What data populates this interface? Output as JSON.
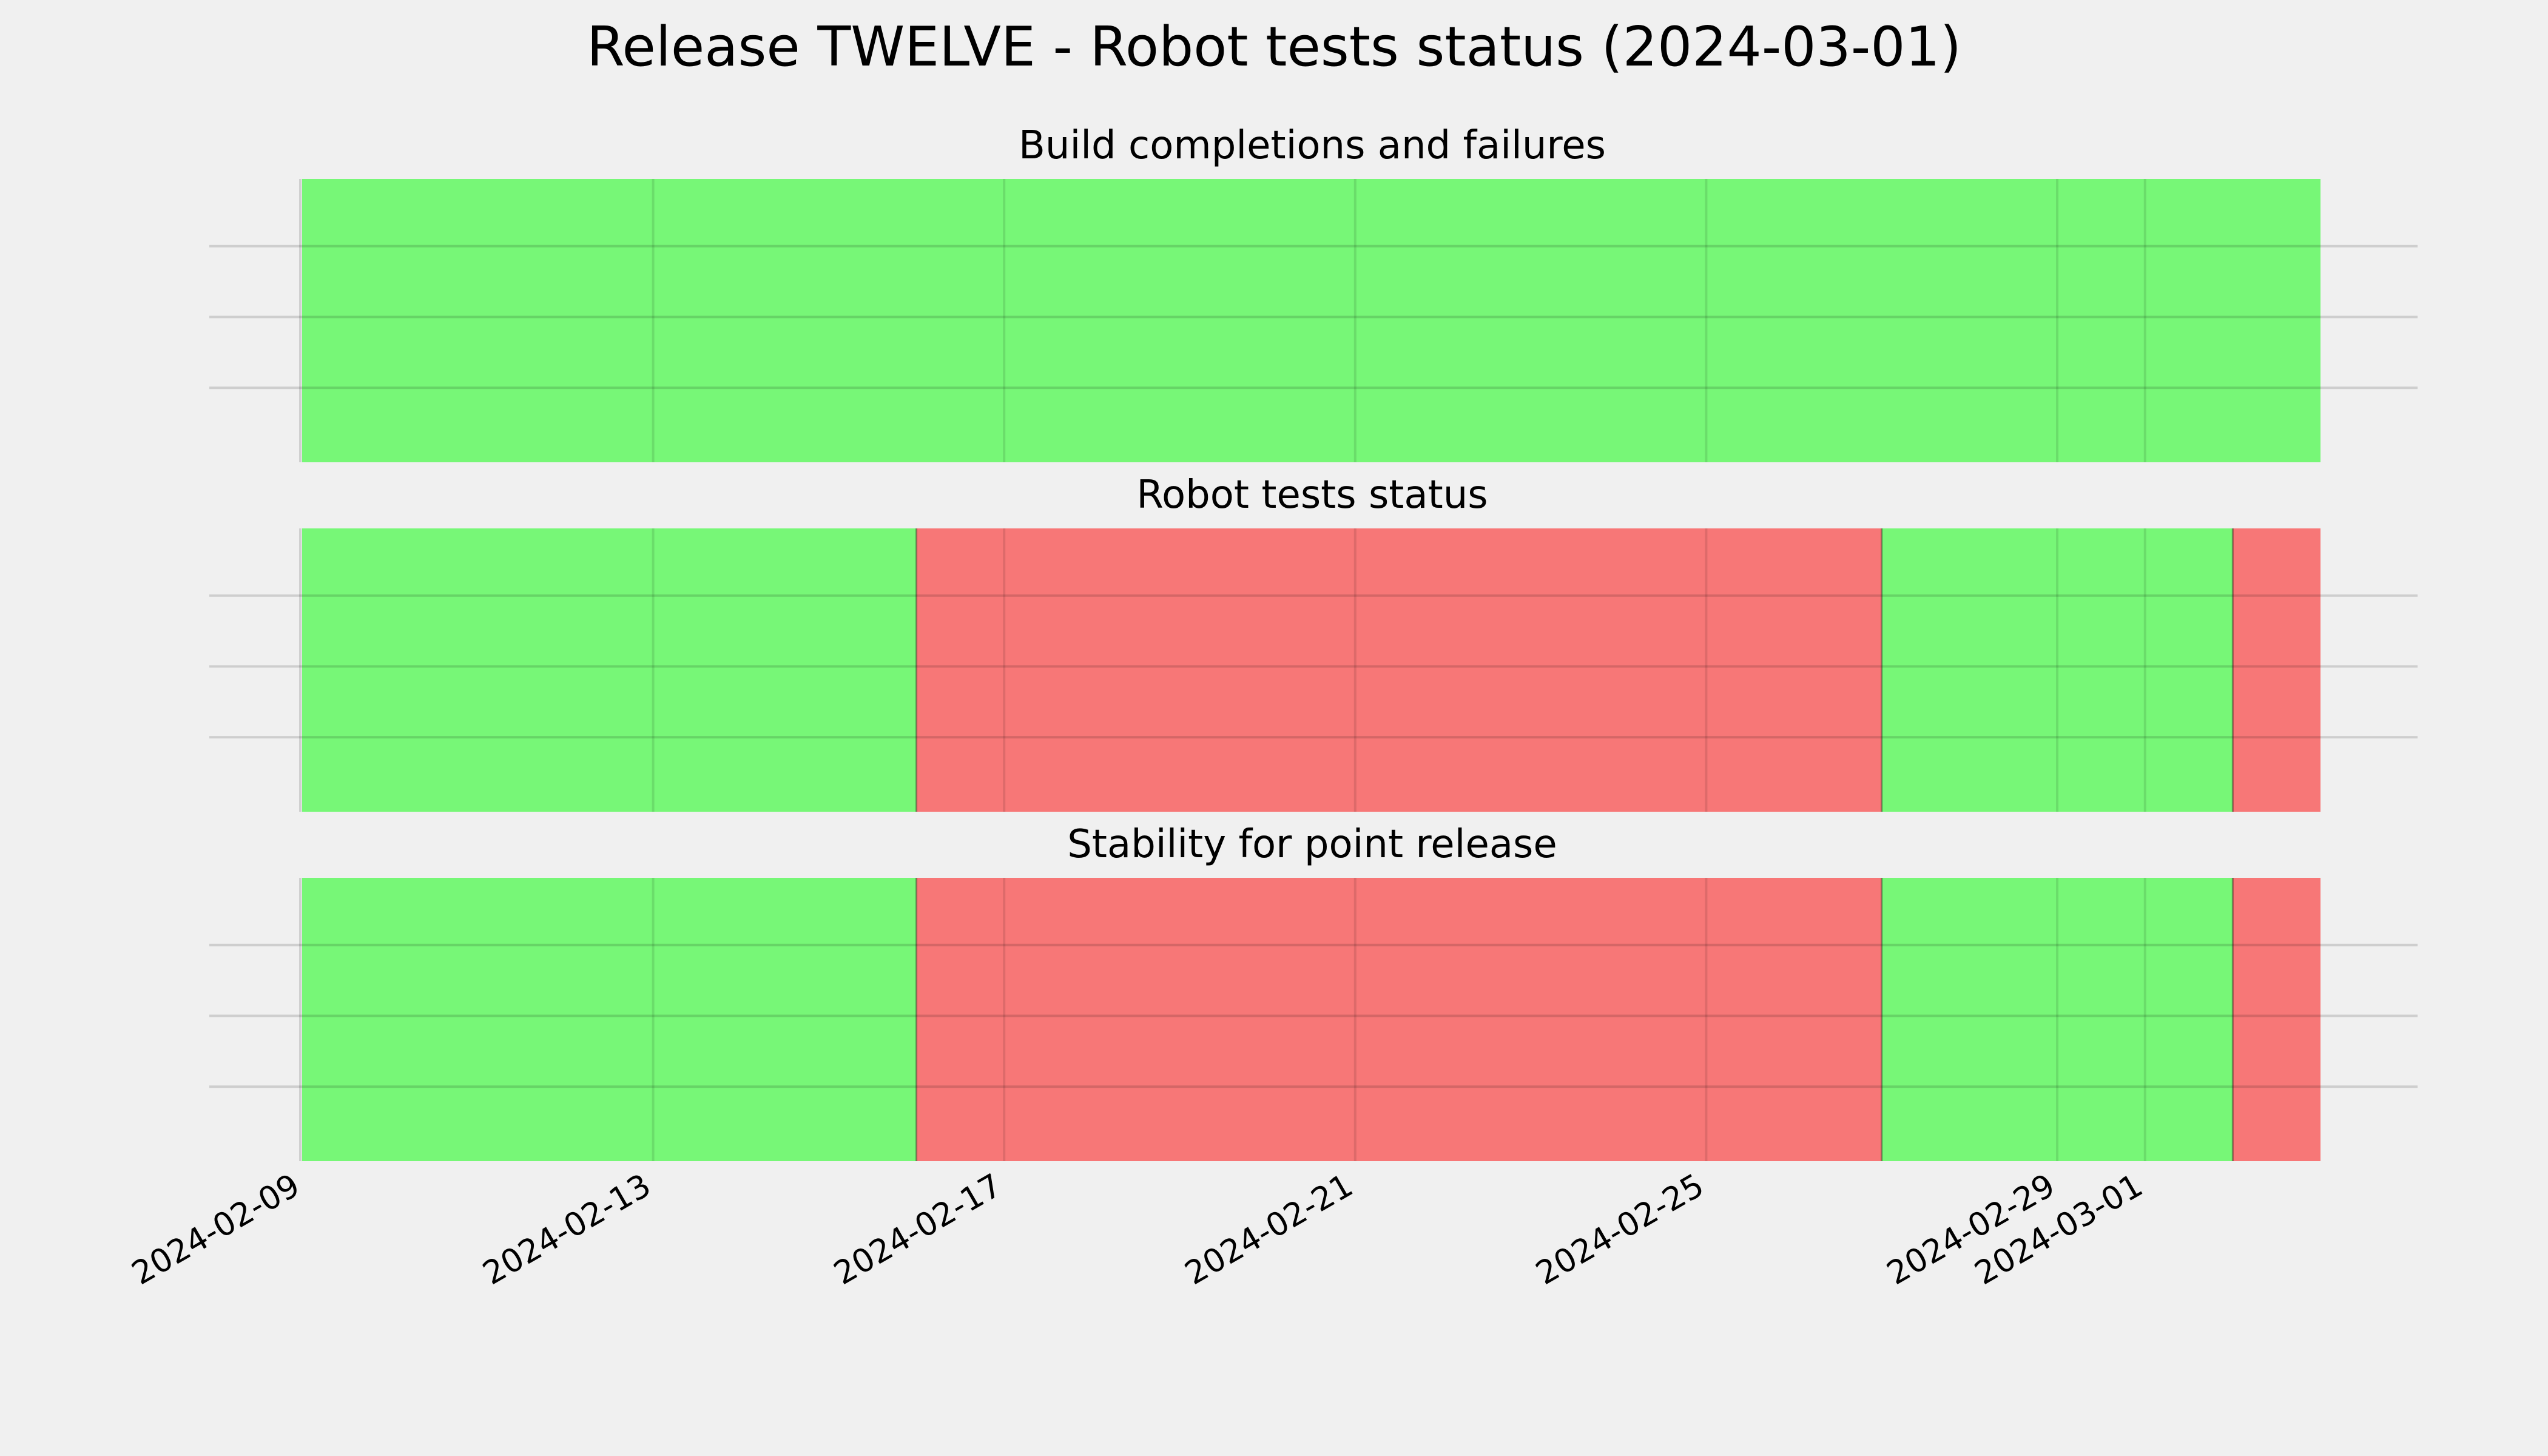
{
  "chart_data": {
    "type": "status-timeline",
    "title": "Release TWELVE - Robot tests status (2024-03-01)",
    "x_range": [
      "2024-02-09T00:00",
      "2024-03-03T00:00"
    ],
    "x_ticks": [
      "2024-02-09",
      "2024-02-13",
      "2024-02-17",
      "2024-02-21",
      "2024-02-25",
      "2024-02-29",
      "2024-03-01"
    ],
    "status_colors": {
      "pass": "#77f777",
      "fail": "#f77777"
    },
    "grid": true,
    "panels": [
      {
        "title": "Build completions and failures",
        "segments": [
          {
            "start": "2024-02-09T00:00",
            "end": "2024-03-03T00:00",
            "status": "pass"
          }
        ]
      },
      {
        "title": "Robot tests status",
        "segments": [
          {
            "start": "2024-02-09T00:00",
            "end": "2024-02-16T00:00",
            "status": "pass"
          },
          {
            "start": "2024-02-16T00:00",
            "end": "2024-02-27T00:00",
            "status": "fail"
          },
          {
            "start": "2024-02-27T00:00",
            "end": "2024-03-02T00:00",
            "status": "pass"
          },
          {
            "start": "2024-03-02T00:00",
            "end": "2024-03-03T00:00",
            "status": "fail"
          }
        ]
      },
      {
        "title": "Stability for point release",
        "segments": [
          {
            "start": "2024-02-09T00:00",
            "end": "2024-02-16T00:00",
            "status": "pass"
          },
          {
            "start": "2024-02-16T00:00",
            "end": "2024-02-27T00:00",
            "status": "fail"
          },
          {
            "start": "2024-02-27T00:00",
            "end": "2024-03-02T00:00",
            "status": "pass"
          },
          {
            "start": "2024-03-02T00:00",
            "end": "2024-03-03T00:00",
            "status": "fail"
          }
        ]
      }
    ]
  }
}
